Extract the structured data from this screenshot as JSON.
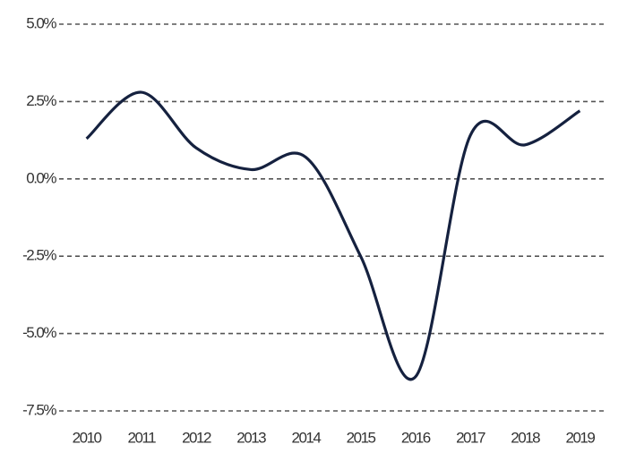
{
  "chart_data": {
    "type": "line",
    "categories": [
      "2010",
      "2011",
      "2012",
      "2013",
      "2014",
      "2015",
      "2016",
      "2017",
      "2018",
      "2019"
    ],
    "values": [
      1.3,
      2.8,
      1.0,
      0.3,
      0.7,
      -2.5,
      -6.4,
      1.4,
      1.1,
      2.2
    ],
    "color": "#15213f",
    "ylim": [
      -7.5,
      5
    ],
    "yticks": [
      {
        "value": 5,
        "label": "5.0%"
      },
      {
        "value": 2.5,
        "label": "2.5%"
      },
      {
        "value": 0,
        "label": "0.0%"
      },
      {
        "value": -2.5,
        "label": "-2.5%"
      },
      {
        "value": -5,
        "label": "-5.0%"
      },
      {
        "value": -7.5,
        "label": "-7.5%"
      }
    ],
    "grid": true
  }
}
